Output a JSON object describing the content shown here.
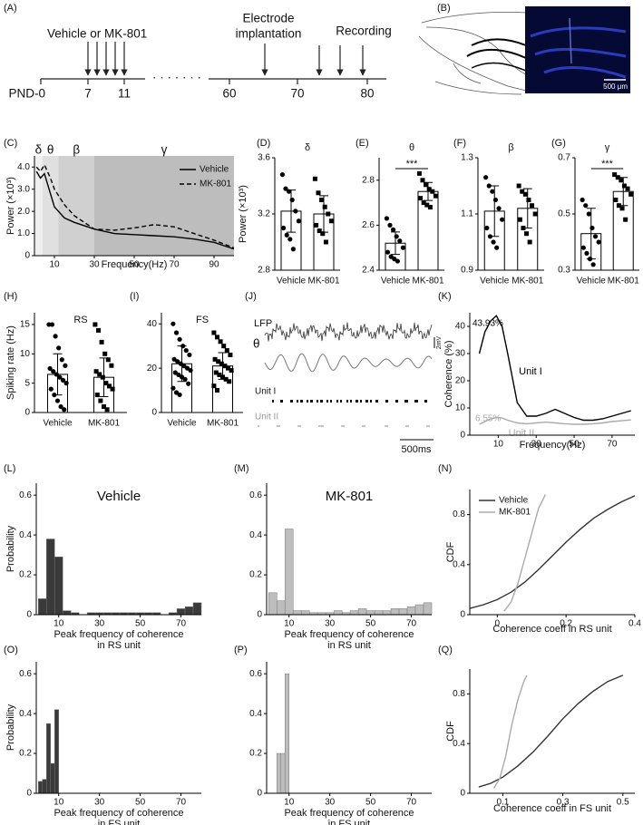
{
  "timeline": {
    "panel": "(A)",
    "treatment": "Vehicle or MK-801",
    "implantation": [
      "Electrode",
      "implantation"
    ],
    "recording": "Recording",
    "start": "PND-0",
    "days": [
      "7",
      "11",
      "60",
      "70",
      "80"
    ],
    "ellipsis": "· · · · · · ·"
  },
  "histology": {
    "panel": "(B)",
    "scale": "500 μm"
  },
  "traces": {
    "panel": "(J)",
    "lfp": "LFP",
    "theta": "θ",
    "unit_1": "Unit I",
    "unit_2": "Unit II",
    "time_scale": "500ms",
    "voltage_scale": "2mV"
  },
  "chart_data": [
    {
      "type": "line",
      "panel": "(C)",
      "x_label": "Frequency(Hz)",
      "y_label": "Power (×10³)",
      "x": [
        1,
        3,
        5,
        8,
        10,
        15,
        20,
        30,
        40,
        50,
        60,
        70,
        80,
        90,
        100
      ],
      "series": [
        {
          "name": "Vehicle",
          "color": "#000000",
          "style": "solid",
          "values": [
            3.8,
            3.5,
            3.7,
            2.8,
            2.2,
            1.7,
            1.5,
            1.2,
            1.0,
            0.95,
            0.9,
            0.85,
            0.75,
            0.6,
            0.3
          ]
        },
        {
          "name": "MK-801",
          "color": "#000000",
          "style": "dashed",
          "values": [
            4.0,
            3.8,
            4.1,
            3.5,
            3.0,
            2.3,
            1.8,
            1.2,
            1.15,
            1.25,
            1.4,
            1.3,
            1.0,
            0.7,
            0.35
          ]
        }
      ],
      "bands": [
        {
          "label": "δ",
          "range": [
            0,
            4
          ],
          "color": "#efefef"
        },
        {
          "label": "θ",
          "range": [
            4,
            12
          ],
          "color": "#e0e0e0"
        },
        {
          "label": "β",
          "range": [
            12,
            30
          ],
          "color": "#d0d0d0"
        },
        {
          "label": "γ",
          "range": [
            30,
            100
          ],
          "color": "#bdbdbd"
        }
      ],
      "xlim": [
        0,
        100
      ],
      "ylim": [
        0,
        4.5
      ],
      "xticks": [
        10,
        30,
        50,
        70,
        90
      ],
      "yticks": [
        0,
        {
          "value": 1,
          "label": "1.0"
        },
        {
          "value": 2,
          "label": "2.0"
        },
        {
          "value": 3,
          "label": "3.0"
        },
        {
          "value": 4,
          "label": "4.0"
        }
      ],
      "legend": "upper right"
    },
    {
      "type": "bar",
      "panel": "(D)",
      "title": "δ",
      "y_label": "Power (×10³)",
      "categories": [
        "Vehicle",
        "MK-801"
      ],
      "values": [
        3.22,
        3.2
      ],
      "errors": [
        0.15,
        0.13
      ],
      "points": [
        [
          3.48,
          3.38,
          3.36,
          3.3,
          3.22,
          3.15,
          3.1,
          3.05,
          3.02,
          2.95
        ],
        [
          3.45,
          3.35,
          3.3,
          3.25,
          3.2,
          3.15,
          3.12,
          3.08,
          3.06,
          3.0
        ]
      ],
      "markers": [
        "circle",
        "square"
      ],
      "color": "#ffffff",
      "ylim": [
        2.8,
        3.6
      ],
      "yticks": [
        2.8,
        3.2,
        3.6
      ]
    },
    {
      "type": "bar",
      "panel": "(E)",
      "title": "θ",
      "significance": "***",
      "categories": [
        "Vehicle",
        "MK-801"
      ],
      "values": [
        2.52,
        2.75
      ],
      "errors": [
        0.05,
        0.04
      ],
      "points": [
        [
          2.63,
          2.6,
          2.58,
          2.55,
          2.53,
          2.5,
          2.48,
          2.46,
          2.45,
          2.44
        ],
        [
          2.83,
          2.8,
          2.78,
          2.76,
          2.75,
          2.73,
          2.72,
          2.7,
          2.69,
          2.68
        ]
      ],
      "markers": [
        "circle",
        "square"
      ],
      "color": "#ffffff",
      "ylim": [
        2.4,
        2.9
      ],
      "yticks": [
        2.4,
        2.6,
        2.8
      ]
    },
    {
      "type": "bar",
      "panel": "(F)",
      "title": "β",
      "categories": [
        "Vehicle",
        "MK-801"
      ],
      "values": [
        1.11,
        1.12
      ],
      "errors": [
        0.09,
        0.07
      ],
      "points": [
        [
          1.23,
          1.2,
          1.18,
          1.15,
          1.12,
          1.08,
          1.05,
          1.02,
          1.0,
          0.98
        ],
        [
          1.2,
          1.18,
          1.17,
          1.15,
          1.13,
          1.1,
          1.08,
          1.05,
          1.03,
          1.0
        ]
      ],
      "markers": [
        "circle",
        "square"
      ],
      "color": "#ffffff",
      "ylim": [
        0.9,
        1.3
      ],
      "yticks": [
        0.9,
        1.1,
        1.3
      ]
    },
    {
      "type": "bar",
      "panel": "(G)",
      "title": "γ",
      "significance": "***",
      "categories": [
        "Vehicle",
        "MK-801"
      ],
      "values": [
        0.43,
        0.58
      ],
      "errors": [
        0.09,
        0.05
      ],
      "points": [
        [
          0.55,
          0.53,
          0.5,
          0.45,
          0.42,
          0.4,
          0.38,
          0.36,
          0.34,
          0.32
        ],
        [
          0.64,
          0.63,
          0.62,
          0.6,
          0.59,
          0.57,
          0.55,
          0.53,
          0.52,
          0.48
        ]
      ],
      "markers": [
        "circle",
        "square"
      ],
      "color": "#ffffff",
      "ylim": [
        0.3,
        0.7
      ],
      "yticks": [
        0.3,
        0.5,
        0.7
      ]
    },
    {
      "type": "bar",
      "panel": "(H)",
      "title": "RS",
      "y_label": "Spiking rate (Hz)",
      "categories": [
        "Vehicle",
        "MK-801"
      ],
      "values": [
        6.5,
        6.0
      ],
      "errors": [
        3.5,
        3.3
      ],
      "points": [
        [
          15,
          15,
          13,
          11,
          9,
          8,
          7.5,
          7,
          6.5,
          6,
          5.5,
          5,
          4,
          3,
          2,
          1,
          0.5
        ],
        [
          15,
          14,
          12,
          10,
          9,
          8,
          7,
          6.5,
          6,
          5,
          4.5,
          4,
          3,
          2,
          1,
          0.5
        ]
      ],
      "markers": [
        "circle",
        "square"
      ],
      "color": "#ffffff",
      "ylim": [
        0,
        17
      ],
      "yticks": [
        0,
        5,
        10,
        15
      ]
    },
    {
      "type": "bar",
      "panel": "(I)",
      "title": "FS",
      "categories": [
        "Vehicle",
        "MK-801"
      ],
      "values": [
        22,
        21
      ],
      "errors": [
        8,
        6
      ],
      "points": [
        [
          40,
          36,
          33,
          30,
          28,
          26,
          24,
          23,
          22,
          21,
          20,
          19,
          18,
          17,
          16,
          15,
          13,
          11,
          9,
          8
        ],
        [
          36,
          34,
          32,
          30,
          28,
          26,
          24,
          23,
          22,
          21,
          20,
          19,
          18,
          17,
          16,
          15,
          14,
          12,
          10
        ]
      ],
      "markers": [
        "circle",
        "square"
      ],
      "color": "#ffffff",
      "ylim": [
        0,
        45
      ],
      "yticks": [
        0,
        20,
        40
      ]
    },
    {
      "type": "line",
      "panel": "(K)",
      "x_label": "Frequency(Hz)",
      "y_label": "Coherence (%)",
      "x": [
        0,
        3,
        6,
        9,
        12,
        15,
        20,
        25,
        30,
        35,
        40,
        45,
        50,
        55,
        60,
        65,
        70,
        75,
        80
      ],
      "series": [
        {
          "name": "Unit I",
          "color": "#000000",
          "style": "solid",
          "values": [
            30,
            38,
            42,
            43.93,
            40,
            30,
            12,
            7,
            7,
            8,
            9.5,
            8,
            6.5,
            5.5,
            5.5,
            6,
            7,
            8,
            9
          ]
        },
        {
          "name": "Unit II",
          "color": "#aaaaaa",
          "style": "solid",
          "values": [
            4,
            5,
            6,
            6.55,
            6.3,
            5.5,
            4.5,
            4.2,
            4.5,
            4.8,
            4.5,
            4.2,
            4,
            4,
            4.2,
            4.5,
            5,
            5.3,
            5.6
          ]
        }
      ],
      "annotations": [
        "43.93%",
        "6.55%"
      ],
      "xlim": [
        -5,
        82
      ],
      "ylim": [
        0,
        45
      ],
      "xticks": [
        10,
        30,
        50,
        70
      ],
      "yticks": [
        0,
        10,
        20,
        30,
        40
      ],
      "legend": "inline"
    },
    {
      "type": "histogram",
      "panel": "(L)",
      "title": "Vehicle",
      "x_label": [
        "Peak frequency of coherence",
        "in RS unit"
      ],
      "y_label": "Probability",
      "bins": [
        0,
        4,
        8,
        12,
        16,
        20,
        24,
        28,
        32,
        36,
        40,
        44,
        48,
        52,
        56,
        60,
        64,
        68,
        72,
        76,
        80
      ],
      "values": [
        0.08,
        0.38,
        0.29,
        0.02,
        0.01,
        0,
        0.01,
        0.01,
        0.01,
        0.01,
        0.01,
        0.01,
        0.01,
        0.01,
        0.01,
        0,
        0.01,
        0.03,
        0.04,
        0.06
      ],
      "color": "#3a3a3a",
      "xlim": [
        -1,
        80
      ],
      "ylim": [
        0,
        0.66
      ],
      "xticks": [
        10,
        30,
        50,
        70
      ],
      "yticks": [
        0,
        0.2,
        0.4,
        0.6
      ]
    },
    {
      "type": "histogram",
      "panel": "(M)",
      "title": "MK-801",
      "x_label": [
        "Peak frequency of coherence",
        "in RS unit"
      ],
      "bins": [
        0,
        4,
        8,
        12,
        16,
        20,
        24,
        28,
        32,
        36,
        40,
        44,
        48,
        52,
        56,
        60,
        64,
        68,
        72,
        76,
        80
      ],
      "values": [
        0.11,
        0.07,
        0.43,
        0.02,
        0.02,
        0.01,
        0.01,
        0.01,
        0.02,
        0.01,
        0.02,
        0.03,
        0.02,
        0.02,
        0.02,
        0.03,
        0.03,
        0.04,
        0.05,
        0.06
      ],
      "color": "#bdbdbd",
      "xlim": [
        -1,
        80
      ],
      "ylim": [
        0,
        0.66
      ],
      "xticks": [
        10,
        30,
        50,
        70
      ],
      "yticks": [
        0,
        0.2,
        0.4,
        0.6
      ]
    },
    {
      "type": "line",
      "panel": "(N)",
      "x_label": "Coherence coeff in RS unit",
      "y_label": "CDF",
      "series": [
        {
          "name": "Vehicle",
          "color": "#333333",
          "style": "solid",
          "x": [
            -0.08,
            -0.04,
            0,
            0.04,
            0.08,
            0.12,
            0.16,
            0.2,
            0.24,
            0.28,
            0.32,
            0.36,
            0.4
          ],
          "values": [
            0.05,
            0.08,
            0.12,
            0.18,
            0.26,
            0.36,
            0.47,
            0.58,
            0.68,
            0.77,
            0.84,
            0.9,
            0.95
          ]
        },
        {
          "name": "MK-801",
          "color": "#aaaaaa",
          "style": "solid",
          "x": [
            0.02,
            0.04,
            0.06,
            0.08,
            0.1,
            0.12,
            0.14
          ],
          "values": [
            0.03,
            0.1,
            0.25,
            0.45,
            0.65,
            0.85,
            0.96
          ]
        }
      ],
      "xlim": [
        -0.08,
        0.4
      ],
      "ylim": [
        0,
        1
      ],
      "xticks": [
        0,
        0.2,
        0.4
      ],
      "yticks": [
        0,
        0.4,
        0.8
      ],
      "legend": "upper left"
    },
    {
      "type": "histogram",
      "panel": "(O)",
      "x_label": [
        "Peak frequency of coherence",
        "in FS unit"
      ],
      "y_label": "Probability",
      "bins": [
        0,
        2,
        4,
        6,
        8,
        10
      ],
      "values": [
        0.06,
        0.07,
        0.35,
        0.15,
        0.42
      ],
      "color": "#3a3a3a",
      "xlim": [
        -1,
        80
      ],
      "ylim": [
        0,
        0.66
      ],
      "xticks": [
        10,
        30,
        50,
        70
      ],
      "yticks": [
        0,
        0.2,
        0.4,
        0.6
      ]
    },
    {
      "type": "histogram",
      "panel": "(P)",
      "x_label": [
        "Peak frequency of coherence",
        "in FS unit"
      ],
      "bins": [
        4,
        6,
        8,
        10
      ],
      "values": [
        0.2,
        0.2,
        0.6
      ],
      "color": "#bdbdbd",
      "xlim": [
        -1,
        80
      ],
      "ylim": [
        0,
        0.66
      ],
      "xticks": [
        10,
        30,
        50,
        70
      ],
      "yticks": [
        0,
        0.2,
        0.4,
        0.6
      ]
    },
    {
      "type": "line",
      "panel": "(Q)",
      "x_label": "Coherence coeff in FS unit",
      "y_label": "CDF",
      "series": [
        {
          "color": "#333333",
          "style": "solid",
          "x": [
            0.02,
            0.06,
            0.1,
            0.15,
            0.2,
            0.25,
            0.3,
            0.35,
            0.4,
            0.45,
            0.5
          ],
          "values": [
            0.05,
            0.08,
            0.13,
            0.22,
            0.33,
            0.46,
            0.6,
            0.72,
            0.82,
            0.9,
            0.95
          ]
        },
        {
          "color": "#aaaaaa",
          "style": "solid",
          "x": [
            0.07,
            0.09,
            0.11,
            0.13,
            0.15,
            0.17,
            0.18
          ],
          "values": [
            0.04,
            0.12,
            0.3,
            0.55,
            0.75,
            0.9,
            0.95
          ]
        }
      ],
      "xlim": [
        -0.01,
        0.54
      ],
      "ylim": [
        0,
        1
      ],
      "xticks": [
        0.1,
        0.3,
        0.5
      ],
      "yticks": [
        0,
        0.4,
        0.8
      ],
      "legend": "none"
    }
  ]
}
